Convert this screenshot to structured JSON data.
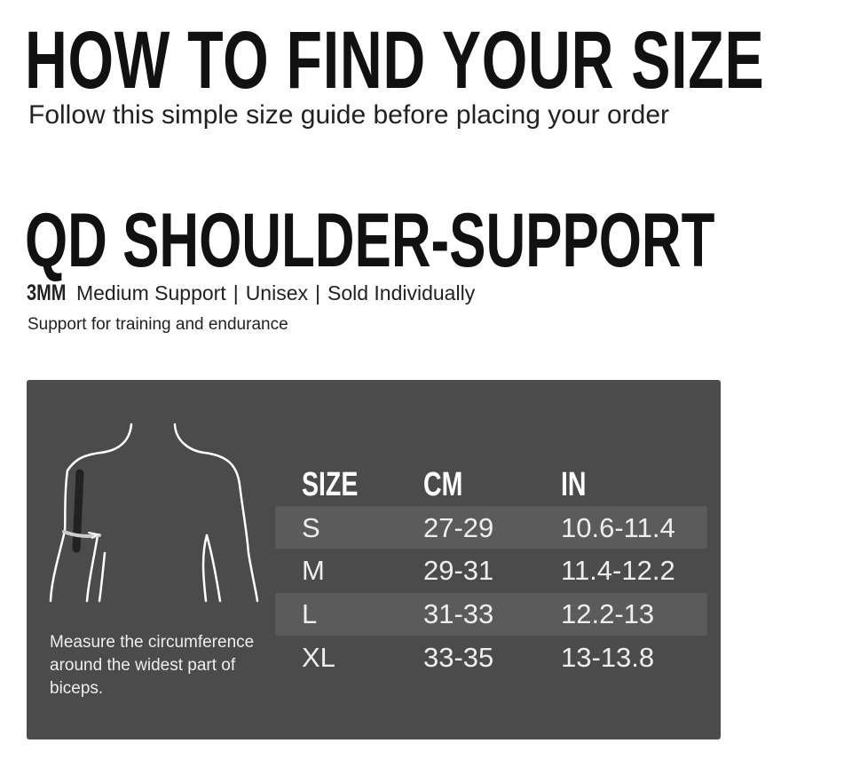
{
  "title": "HOW TO FIND YOUR SIZE",
  "subtitle": "Follow this simple size guide before placing your order",
  "product": "QD SHOULDER-SUPPORT",
  "specs": {
    "thickness": "3MM",
    "support": "Medium Support",
    "fit": "Unisex",
    "sold": "Sold Individually",
    "separator": "|"
  },
  "tagline": "Support for training and endurance",
  "panel": {
    "bg": "#4b4b4b",
    "illustration_icon": "upper-body-biceps-measure-icon",
    "note": "Measure the circumference around the widest part of biceps.",
    "headers": [
      "SIZE",
      "CM",
      "IN"
    ],
    "rows": [
      [
        "S",
        "27-29",
        "10.6-11.4"
      ],
      [
        "M",
        "29-31",
        "11.4-12.2"
      ],
      [
        "L",
        "31-33",
        "12.2-13"
      ],
      [
        "XL",
        "33-35",
        "13-13.8"
      ]
    ]
  }
}
